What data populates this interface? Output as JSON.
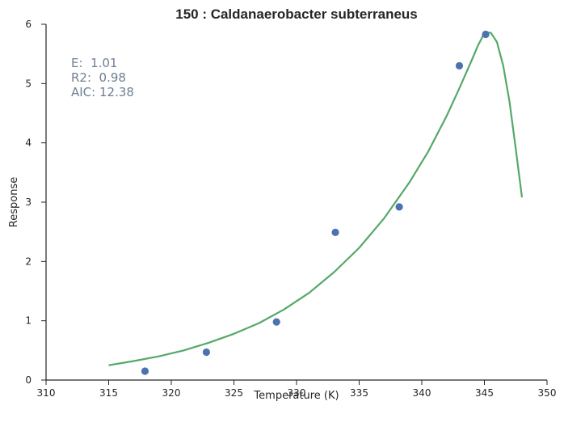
{
  "chart_data": {
    "type": "scatter",
    "title": "150 : Caldanaerobacter subterraneus",
    "xlabel": "Temperature (K)",
    "ylabel": "Response",
    "xlim": [
      310,
      350
    ],
    "ylim": [
      0,
      6
    ],
    "xticks": [
      "310",
      "315",
      "320",
      "325",
      "330",
      "335",
      "340",
      "345",
      "350"
    ],
    "yticks": [
      "0",
      "1",
      "2",
      "3",
      "4",
      "5",
      "6"
    ],
    "grid": false,
    "series": [
      {
        "kind": "points",
        "color": "#4c72b0",
        "points": [
          {
            "x": 317.9,
            "y": 0.15
          },
          {
            "x": 322.8,
            "y": 0.47
          },
          {
            "x": 328.4,
            "y": 0.98
          },
          {
            "x": 333.1,
            "y": 2.49
          },
          {
            "x": 338.2,
            "y": 2.92
          },
          {
            "x": 343.0,
            "y": 5.3
          },
          {
            "x": 345.1,
            "y": 5.83
          }
        ]
      },
      {
        "kind": "fit-line",
        "color": "#55a868",
        "points": [
          {
            "x": 315.0,
            "y": 0.25
          },
          {
            "x": 317.0,
            "y": 0.32
          },
          {
            "x": 319.0,
            "y": 0.4
          },
          {
            "x": 321.0,
            "y": 0.5
          },
          {
            "x": 323.0,
            "y": 0.63
          },
          {
            "x": 325.0,
            "y": 0.78
          },
          {
            "x": 327.0,
            "y": 0.96
          },
          {
            "x": 329.0,
            "y": 1.19
          },
          {
            "x": 331.0,
            "y": 1.47
          },
          {
            "x": 333.0,
            "y": 1.82
          },
          {
            "x": 335.0,
            "y": 2.23
          },
          {
            "x": 337.0,
            "y": 2.73
          },
          {
            "x": 339.0,
            "y": 3.33
          },
          {
            "x": 340.5,
            "y": 3.85
          },
          {
            "x": 342.0,
            "y": 4.46
          },
          {
            "x": 343.0,
            "y": 4.92
          },
          {
            "x": 344.0,
            "y": 5.4
          },
          {
            "x": 344.5,
            "y": 5.65
          },
          {
            "x": 345.0,
            "y": 5.85
          },
          {
            "x": 345.5,
            "y": 5.86
          },
          {
            "x": 346.0,
            "y": 5.7
          },
          {
            "x": 346.5,
            "y": 5.3
          },
          {
            "x": 347.0,
            "y": 4.7
          },
          {
            "x": 347.5,
            "y": 3.9
          },
          {
            "x": 348.0,
            "y": 3.08
          }
        ]
      }
    ],
    "annotations": [
      "E:  1.01",
      "R2:  0.98",
      "AIC: 12.38"
    ]
  }
}
